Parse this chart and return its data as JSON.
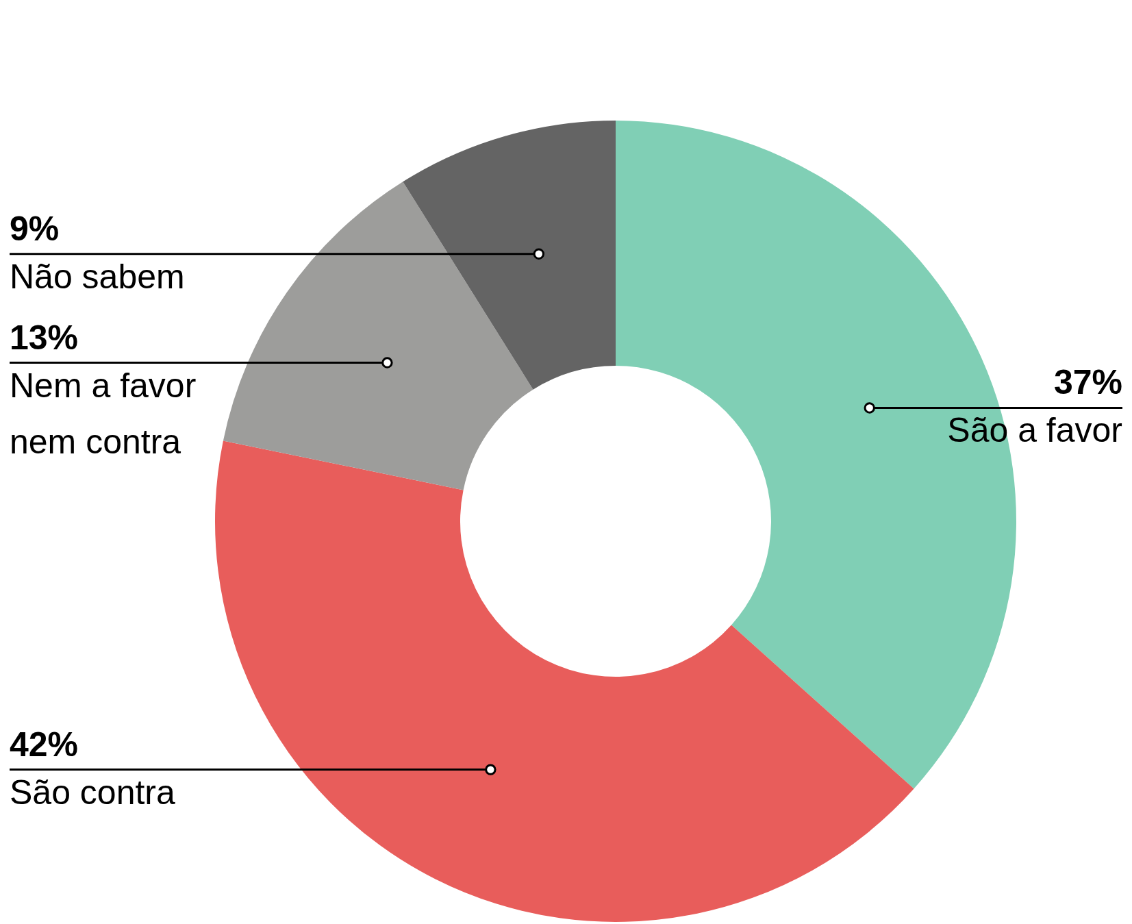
{
  "chart_data": {
    "type": "donut",
    "categories": [
      "São a favor",
      "São contra",
      "Nem a favor nem contra",
      "Não sabem"
    ],
    "values": [
      37,
      42,
      13,
      9
    ],
    "colors": [
      "#80cfb5",
      "#e85d5b",
      "#9d9d9b",
      "#646464"
    ],
    "value_labels": [
      "37%",
      "42%",
      "13%",
      "9%"
    ]
  }
}
